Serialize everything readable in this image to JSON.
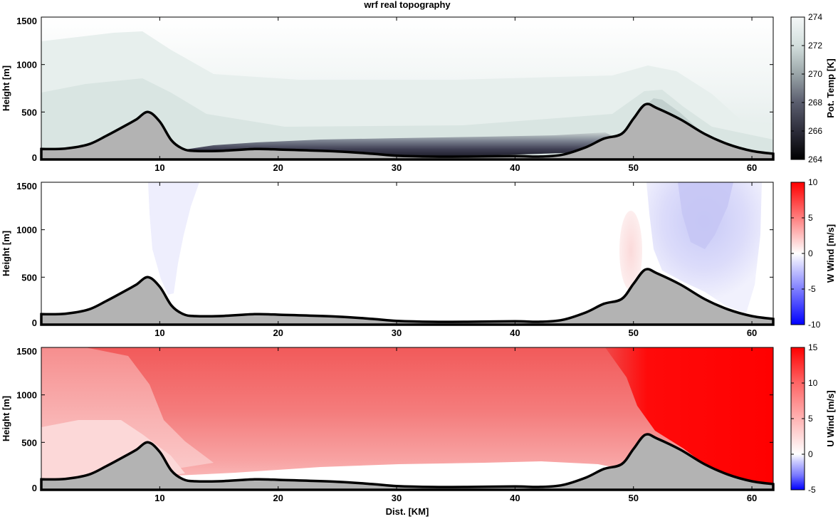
{
  "chart_data": [
    {
      "type": "heatmap",
      "title": "wrf real topography",
      "xlabel": "",
      "ylabel": "Height [m]",
      "xlim": [
        0,
        61.8
      ],
      "ylim": [
        0,
        1500
      ],
      "xticks": [
        10,
        20,
        30,
        40,
        50,
        60
      ],
      "yticks": [
        0,
        500,
        1000,
        1500
      ],
      "colorbar": {
        "label": "Pot. Temp [K]",
        "min": 264,
        "max": 274,
        "ticks": [
          264,
          266,
          268,
          270,
          272,
          274
        ],
        "colors": [
          "#000000",
          "#2d2d3a",
          "#5a5d6e",
          "#9aa5a8",
          "#d3dfdd",
          "#f4f7f7"
        ]
      },
      "series": [
        {
          "name": "Topography",
          "x": [
            0,
            2,
            4,
            5.5,
            7,
            8,
            9,
            10,
            11,
            12,
            13,
            15,
            18,
            20,
            25,
            28,
            30,
            33,
            36,
            40,
            42,
            44,
            46,
            47.5,
            49,
            50,
            51,
            52,
            54,
            56,
            58,
            60,
            61.8
          ],
          "y": [
            110,
            115,
            160,
            250,
            350,
            420,
            500,
            400,
            200,
            110,
            90,
            90,
            110,
            105,
            85,
            60,
            40,
            30,
            30,
            35,
            30,
            50,
            130,
            220,
            270,
            430,
            580,
            540,
            420,
            270,
            160,
            90,
            60
          ]
        }
      ]
    },
    {
      "type": "heatmap",
      "xlabel": "",
      "ylabel": "Height [m]",
      "xlim": [
        0,
        61.8
      ],
      "ylim": [
        0,
        1500
      ],
      "xticks": [
        10,
        20,
        30,
        40,
        50,
        60
      ],
      "yticks": [
        0,
        500,
        1000,
        1500
      ],
      "colorbar": {
        "label": "W Wind [m/s]",
        "min": -10,
        "max": 10,
        "ticks": [
          -10,
          -5,
          0,
          5,
          10
        ],
        "colors": [
          "#0000ff",
          "#7f7fff",
          "#ffffff",
          "#ff7f7f",
          "#ff0000"
        ]
      },
      "series": [
        {
          "name": "Topography",
          "x": [
            0,
            2,
            4,
            5.5,
            7,
            8,
            9,
            10,
            11,
            12,
            13,
            15,
            18,
            20,
            25,
            28,
            30,
            33,
            36,
            40,
            42,
            44,
            46,
            47.5,
            49,
            50,
            51,
            52,
            54,
            56,
            58,
            60,
            61.8
          ],
          "y": [
            110,
            115,
            160,
            250,
            350,
            420,
            500,
            400,
            200,
            110,
            90,
            90,
            110,
            105,
            85,
            60,
            40,
            30,
            30,
            35,
            30,
            50,
            130,
            220,
            270,
            430,
            580,
            540,
            420,
            270,
            160,
            90,
            60
          ]
        }
      ]
    },
    {
      "type": "heatmap",
      "xlabel": "Dist. [KM]",
      "ylabel": "Height [m]",
      "xlim": [
        0,
        61.8
      ],
      "ylim": [
        0,
        1500
      ],
      "xticks": [
        10,
        20,
        30,
        40,
        50,
        60
      ],
      "yticks": [
        0,
        500,
        1000,
        1500
      ],
      "colorbar": {
        "label": "U Wind [m/s]",
        "min": -5,
        "max": 15,
        "ticks": [
          -5,
          0,
          5,
          10,
          15
        ],
        "colors": [
          "#0000ff",
          "#ffffff",
          "#ffb3b3",
          "#ff6666",
          "#ff0000"
        ]
      },
      "series": [
        {
          "name": "Topography",
          "x": [
            0,
            2,
            4,
            5.5,
            7,
            8,
            9,
            10,
            11,
            12,
            13,
            15,
            18,
            20,
            25,
            28,
            30,
            33,
            36,
            40,
            42,
            44,
            46,
            47.5,
            49,
            50,
            51,
            52,
            54,
            56,
            58,
            60,
            61.8
          ],
          "y": [
            110,
            115,
            160,
            250,
            350,
            420,
            500,
            400,
            200,
            110,
            90,
            90,
            110,
            105,
            85,
            60,
            40,
            30,
            30,
            35,
            30,
            50,
            130,
            220,
            270,
            430,
            580,
            540,
            420,
            270,
            160,
            90,
            60
          ]
        }
      ]
    }
  ],
  "colors": {
    "terrain_fill": "#b3b3b3",
    "terrain_line": "#000000"
  }
}
